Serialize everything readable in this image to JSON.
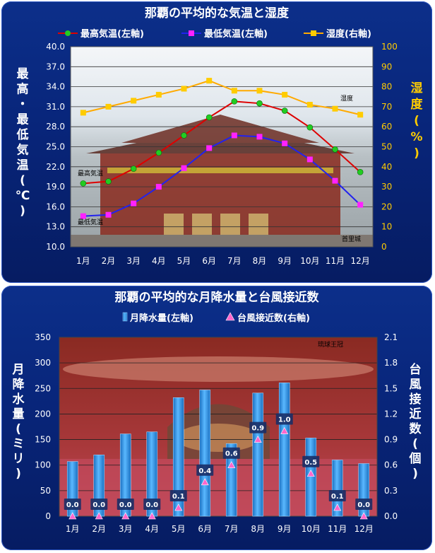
{
  "chart_data": [
    {
      "type": "line",
      "title": "那覇の平均的な気温と湿度",
      "categories": [
        "1月",
        "2月",
        "3月",
        "4月",
        "5月",
        "6月",
        "7月",
        "8月",
        "9月",
        "10月",
        "11月",
        "12月"
      ],
      "series": [
        {
          "name": "最高気温(左軸)",
          "axis": "left",
          "color": "#dd0000",
          "marker": "circle",
          "marker_color": "#22cc22",
          "values": [
            19.5,
            19.8,
            21.7,
            24.1,
            26.7,
            29.4,
            31.8,
            31.5,
            30.4,
            27.9,
            24.6,
            21.2
          ]
        },
        {
          "name": "最低気温(左軸)",
          "axis": "left",
          "color": "#2222ee",
          "marker": "square",
          "marker_color": "#ff22ff",
          "values": [
            14.6,
            14.8,
            16.5,
            19.0,
            21.8,
            24.8,
            26.7,
            26.5,
            25.5,
            23.1,
            19.9,
            16.3
          ]
        },
        {
          "name": "湿度(右軸)",
          "axis": "right",
          "color": "#ffaa00",
          "marker": "square",
          "marker_color": "#ffcc00",
          "values": [
            67,
            70,
            73,
            76,
            79,
            83,
            78,
            78,
            76,
            71,
            69,
            66
          ]
        }
      ],
      "ylabel": "最高・最低気温(℃)",
      "ylabel_right": "湿度(%)",
      "ylim": [
        10.0,
        40.0
      ],
      "yticks": [
        "10.0",
        "13.0",
        "16.0",
        "19.0",
        "22.0",
        "25.0",
        "28.0",
        "31.0",
        "34.0",
        "37.0",
        "40.0"
      ],
      "ylim_right": [
        0,
        100
      ],
      "yticks_right": [
        "0",
        "10",
        "20",
        "30",
        "40",
        "50",
        "60",
        "70",
        "80",
        "90",
        "100"
      ],
      "annotations": [
        "湿度",
        "最高気温",
        "最低気温",
        "首里城"
      ],
      "grid": true,
      "legend": "top"
    },
    {
      "type": "bar",
      "title": "那覇の平均的な月降水量と台風接近数",
      "categories": [
        "1月",
        "2月",
        "3月",
        "4月",
        "5月",
        "6月",
        "7月",
        "8月",
        "9月",
        "10月",
        "11月",
        "12月"
      ],
      "series": [
        {
          "name": "月降水量(左軸)",
          "axis": "left",
          "kind": "bar",
          "color": "#2a8fe0",
          "values": [
            107,
            120,
            161,
            165,
            232,
            247,
            142,
            241,
            261,
            153,
            110,
            103
          ]
        },
        {
          "name": "台風接近数(右軸)",
          "axis": "right",
          "kind": "marker",
          "color": "#ff66cc",
          "values": [
            0.0,
            0.0,
            0.0,
            0.0,
            0.1,
            0.4,
            0.6,
            0.9,
            1.0,
            0.5,
            0.1,
            0.0
          ],
          "labels": [
            "0.0",
            "0.0",
            "0.0",
            "0.0",
            "0.1",
            "0.4",
            "0.6",
            "0.9",
            "1.0",
            "0.5",
            "0.1",
            "0.0"
          ]
        }
      ],
      "ylabel": "月降水量(ミリ)",
      "ylabel_right": "台風接近数(個)",
      "ylim": [
        0,
        350
      ],
      "yticks": [
        "0",
        "50",
        "100",
        "150",
        "200",
        "250",
        "300",
        "350"
      ],
      "ylim_right": [
        0.0,
        2.1
      ],
      "yticks_right": [
        "0.0",
        "0.3",
        "0.6",
        "0.9",
        "1.2",
        "1.5",
        "1.8",
        "2.1"
      ],
      "annotations": [
        "琉球王冠"
      ],
      "grid": true,
      "legend": "top"
    }
  ]
}
